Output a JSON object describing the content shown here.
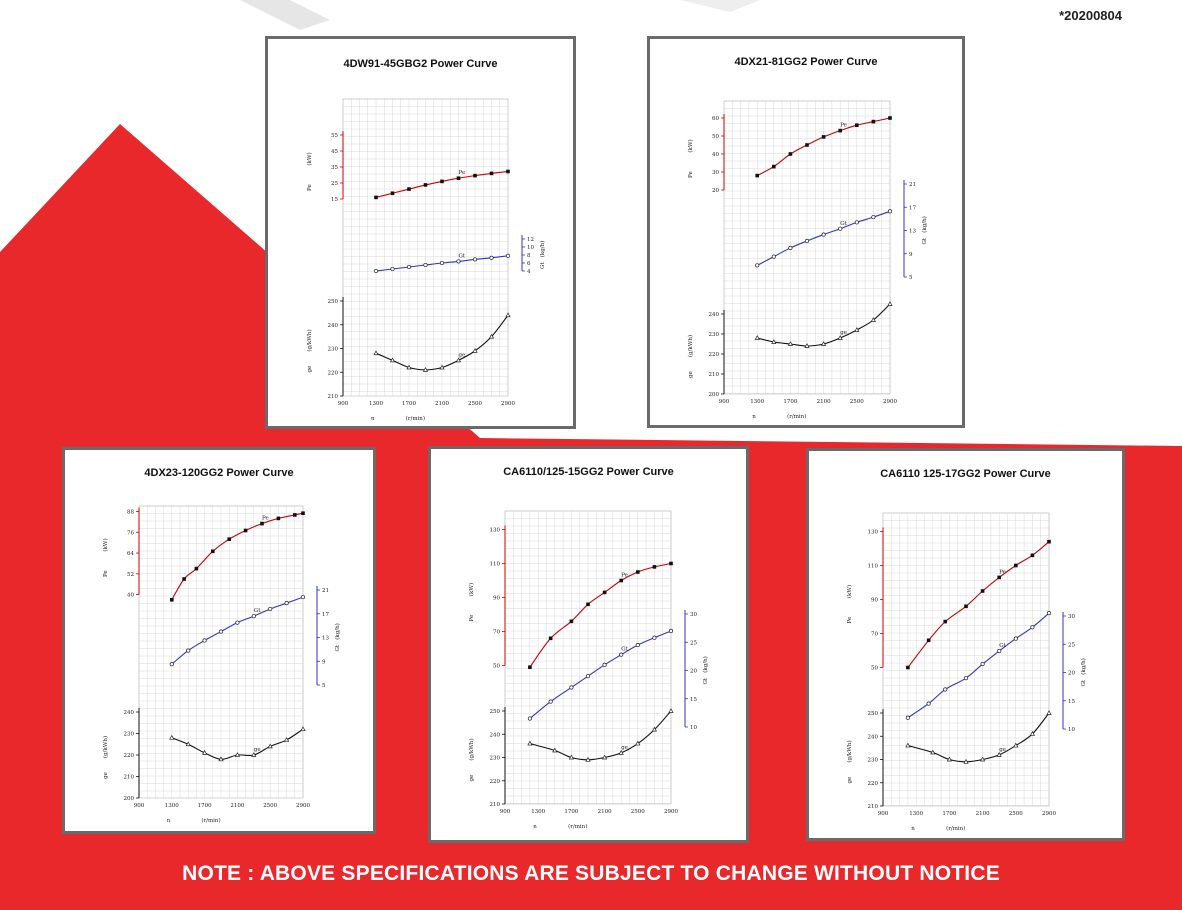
{
  "document_code": "*20200804",
  "note": "NOTE : ABOVE SPECIFICATIONS ARE SUBJECT TO CHANGE WITHOUT NOTICE",
  "colors": {
    "brand_red": "#e8282b",
    "pe": "#cc0000",
    "gt": "#3333cc",
    "ge": "#111111"
  },
  "chart_data": [
    {
      "type": "line",
      "title": "4DW91-45GBG2 Power Curve",
      "xlabel": "n",
      "xunit": "(r/min)",
      "x_ticks": [
        900,
        1300,
        1700,
        2100,
        2500,
        2900
      ],
      "xlim": [
        900,
        2900
      ],
      "grid": true,
      "series": [
        {
          "name": "Pe",
          "label": "Pe",
          "unit": "(kW)",
          "ticks": [
            15,
            25,
            35,
            45,
            55
          ],
          "ylim": [
            10,
            60
          ],
          "values": [
            [
              1300,
              16
            ],
            [
              1500,
              18.6
            ],
            [
              1700,
              21.2
            ],
            [
              1900,
              23.8
            ],
            [
              2100,
              26
            ],
            [
              2300,
              28
            ],
            [
              2500,
              29.6
            ],
            [
              2700,
              31
            ],
            [
              2900,
              32.2
            ]
          ]
        },
        {
          "name": "Gt",
          "label": "Gt",
          "unit": "(kg/h)",
          "ticks": [
            4,
            6,
            8,
            10,
            12
          ],
          "ylim": [
            0,
            12
          ],
          "values": [
            [
              1300,
              4
            ],
            [
              1500,
              4.5
            ],
            [
              1700,
              5
            ],
            [
              1900,
              5.5
            ],
            [
              2100,
              6
            ],
            [
              2300,
              6.4
            ],
            [
              2500,
              6.9
            ],
            [
              2700,
              7.3
            ],
            [
              2900,
              7.8
            ]
          ]
        },
        {
          "name": "ge",
          "label": "ge",
          "unit": "(g/kWh)",
          "ticks": [
            210,
            220,
            230,
            240,
            250
          ],
          "ylim": [
            210,
            250
          ],
          "values": [
            [
              1300,
              228
            ],
            [
              1500,
              225
            ],
            [
              1700,
              222
            ],
            [
              1900,
              221
            ],
            [
              2100,
              222
            ],
            [
              2300,
              225
            ],
            [
              2500,
              229
            ],
            [
              2700,
              235
            ],
            [
              2900,
              244
            ]
          ]
        }
      ]
    },
    {
      "type": "line",
      "title": "4DX21-81GG2 Power Curve",
      "xlabel": "n",
      "xunit": "(r/min)",
      "x_ticks": [
        900,
        1300,
        1700,
        2100,
        2500,
        2900
      ],
      "xlim": [
        900,
        2900
      ],
      "grid": true,
      "series": [
        {
          "name": "Pe",
          "label": "Pe",
          "unit": "(kW)",
          "ticks": [
            20,
            30,
            40,
            50,
            60
          ],
          "ylim": [
            15,
            65
          ],
          "values": [
            [
              1300,
              28
            ],
            [
              1500,
              33
            ],
            [
              1700,
              40
            ],
            [
              1900,
              45
            ],
            [
              2100,
              49.5
            ],
            [
              2300,
              53
            ],
            [
              2500,
              56
            ],
            [
              2700,
              58
            ],
            [
              2900,
              60
            ]
          ]
        },
        {
          "name": "Gt",
          "label": "Gt",
          "unit": "(kg/h)",
          "ticks": [
            5,
            9,
            13,
            17,
            21
          ],
          "ylim": [
            5,
            21
          ],
          "values": [
            [
              1300,
              7
            ],
            [
              1500,
              8.5
            ],
            [
              1700,
              10
            ],
            [
              1900,
              11.2
            ],
            [
              2100,
              12.3
            ],
            [
              2300,
              13.3
            ],
            [
              2500,
              14.4
            ],
            [
              2700,
              15.3
            ],
            [
              2900,
              16.3
            ]
          ]
        },
        {
          "name": "ge",
          "label": "ge",
          "unit": "(g/kWh)",
          "ticks": [
            200,
            210,
            220,
            230,
            240
          ],
          "ylim": [
            200,
            245
          ],
          "values": [
            [
              1300,
              228
            ],
            [
              1500,
              226
            ],
            [
              1700,
              225
            ],
            [
              1900,
              224
            ],
            [
              2100,
              225
            ],
            [
              2300,
              228
            ],
            [
              2500,
              232
            ],
            [
              2700,
              237
            ],
            [
              2900,
              245
            ]
          ]
        }
      ]
    },
    {
      "type": "line",
      "title": "4DX23-120GG2 Power Curve",
      "xlabel": "n",
      "xunit": "(r/min)",
      "x_ticks": [
        900,
        1300,
        1700,
        2100,
        2500,
        2900
      ],
      "xlim": [
        900,
        2900
      ],
      "grid": true,
      "series": [
        {
          "name": "Pe",
          "label": "Pe",
          "unit": "(kW)",
          "ticks": [
            40,
            52,
            64,
            76,
            88
          ],
          "ylim": [
            34,
            90
          ],
          "values": [
            [
              1300,
              37
            ],
            [
              1450,
              49
            ],
            [
              1600,
              55
            ],
            [
              1800,
              65
            ],
            [
              2000,
              72
            ],
            [
              2200,
              77
            ],
            [
              2400,
              81
            ],
            [
              2600,
              84
            ],
            [
              2800,
              86
            ],
            [
              2900,
              87
            ]
          ]
        },
        {
          "name": "Gt",
          "label": "Gt",
          "unit": "(kg/h)",
          "ticks": [
            5,
            9,
            13,
            17,
            21
          ],
          "ylim": [
            5,
            21
          ],
          "values": [
            [
              1300,
              8.5
            ],
            [
              1500,
              10.8
            ],
            [
              1700,
              12.5
            ],
            [
              1900,
              14
            ],
            [
              2100,
              15.5
            ],
            [
              2300,
              16.6
            ],
            [
              2500,
              17.8
            ],
            [
              2700,
              18.8
            ],
            [
              2900,
              19.8
            ]
          ]
        },
        {
          "name": "ge",
          "label": "ge",
          "unit": "(g/kWh)",
          "ticks": [
            200,
            210,
            220,
            230,
            240
          ],
          "ylim": [
            200,
            240
          ],
          "values": [
            [
              1300,
              228
            ],
            [
              1500,
              225
            ],
            [
              1700,
              221
            ],
            [
              1900,
              218
            ],
            [
              2100,
              220
            ],
            [
              2300,
              220
            ],
            [
              2500,
              224
            ],
            [
              2700,
              227
            ],
            [
              2900,
              232
            ]
          ]
        }
      ]
    },
    {
      "type": "line",
      "title": "CA6110/125-15GG2 Power Curve",
      "xlabel": "n",
      "xunit": "(r/min)",
      "x_ticks": [
        900,
        1300,
        1700,
        2100,
        2500,
        2900
      ],
      "xlim": [
        900,
        2900
      ],
      "grid": true,
      "series": [
        {
          "name": "Pe",
          "label": "Pe",
          "unit": "(kW)",
          "ticks": [
            50,
            70,
            90,
            110,
            130
          ],
          "ylim": [
            45,
            135
          ],
          "values": [
            [
              1200,
              49
            ],
            [
              1450,
              66
            ],
            [
              1700,
              76
            ],
            [
              1900,
              86
            ],
            [
              2100,
              93
            ],
            [
              2300,
              100
            ],
            [
              2500,
              105
            ],
            [
              2700,
              108
            ],
            [
              2900,
              110
            ]
          ]
        },
        {
          "name": "Gt",
          "label": "Gt",
          "unit": "(kg/h)",
          "ticks": [
            10,
            15,
            20,
            25,
            30
          ],
          "ylim": [
            10,
            30
          ],
          "values": [
            [
              1200,
              11.5
            ],
            [
              1450,
              14.5
            ],
            [
              1700,
              17
            ],
            [
              1900,
              19
            ],
            [
              2100,
              21
            ],
            [
              2300,
              22.8
            ],
            [
              2500,
              24.5
            ],
            [
              2700,
              25.8
            ],
            [
              2900,
              27
            ]
          ]
        },
        {
          "name": "ge",
          "label": "ge",
          "unit": "(g/kWh)",
          "ticks": [
            210,
            220,
            230,
            240,
            250
          ],
          "ylim": [
            210,
            250
          ],
          "values": [
            [
              1200,
              236
            ],
            [
              1500,
              233
            ],
            [
              1700,
              230
            ],
            [
              1900,
              229
            ],
            [
              2100,
              230
            ],
            [
              2300,
              232
            ],
            [
              2500,
              236
            ],
            [
              2700,
              242
            ],
            [
              2900,
              250
            ]
          ]
        }
      ]
    },
    {
      "type": "line",
      "title": "CA6110 125-17GG2 Power Curve",
      "xlabel": "n",
      "xunit": "(r/min)",
      "x_ticks": [
        900,
        1300,
        1700,
        2100,
        2500,
        2900
      ],
      "xlim": [
        900,
        2900
      ],
      "grid": true,
      "series": [
        {
          "name": "Pe",
          "label": "Pe",
          "unit": "(kW)",
          "ticks": [
            50,
            70,
            90,
            110,
            130
          ],
          "ylim": [
            45,
            135
          ],
          "values": [
            [
              1200,
              50
            ],
            [
              1450,
              66
            ],
            [
              1650,
              77
            ],
            [
              1900,
              86
            ],
            [
              2100,
              95
            ],
            [
              2300,
              103
            ],
            [
              2500,
              110
            ],
            [
              2700,
              116
            ],
            [
              2900,
              124
            ]
          ]
        },
        {
          "name": "Gt",
          "label": "Gt",
          "unit": "(kg/h)",
          "ticks": [
            10,
            15,
            20,
            25,
            30
          ],
          "ylim": [
            10,
            30
          ],
          "values": [
            [
              1200,
              12
            ],
            [
              1450,
              14.5
            ],
            [
              1650,
              17
            ],
            [
              1900,
              19
            ],
            [
              2100,
              21.5
            ],
            [
              2300,
              23.8
            ],
            [
              2500,
              26
            ],
            [
              2700,
              28
            ],
            [
              2900,
              30.5
            ]
          ]
        },
        {
          "name": "ge",
          "label": "ge",
          "unit": "(g/kWh)",
          "ticks": [
            210,
            220,
            230,
            240,
            250
          ],
          "ylim": [
            210,
            250
          ],
          "values": [
            [
              1200,
              236
            ],
            [
              1500,
              233
            ],
            [
              1700,
              230
            ],
            [
              1900,
              229
            ],
            [
              2100,
              230
            ],
            [
              2300,
              232
            ],
            [
              2500,
              236
            ],
            [
              2700,
              241
            ],
            [
              2900,
              250
            ]
          ]
        }
      ]
    }
  ]
}
